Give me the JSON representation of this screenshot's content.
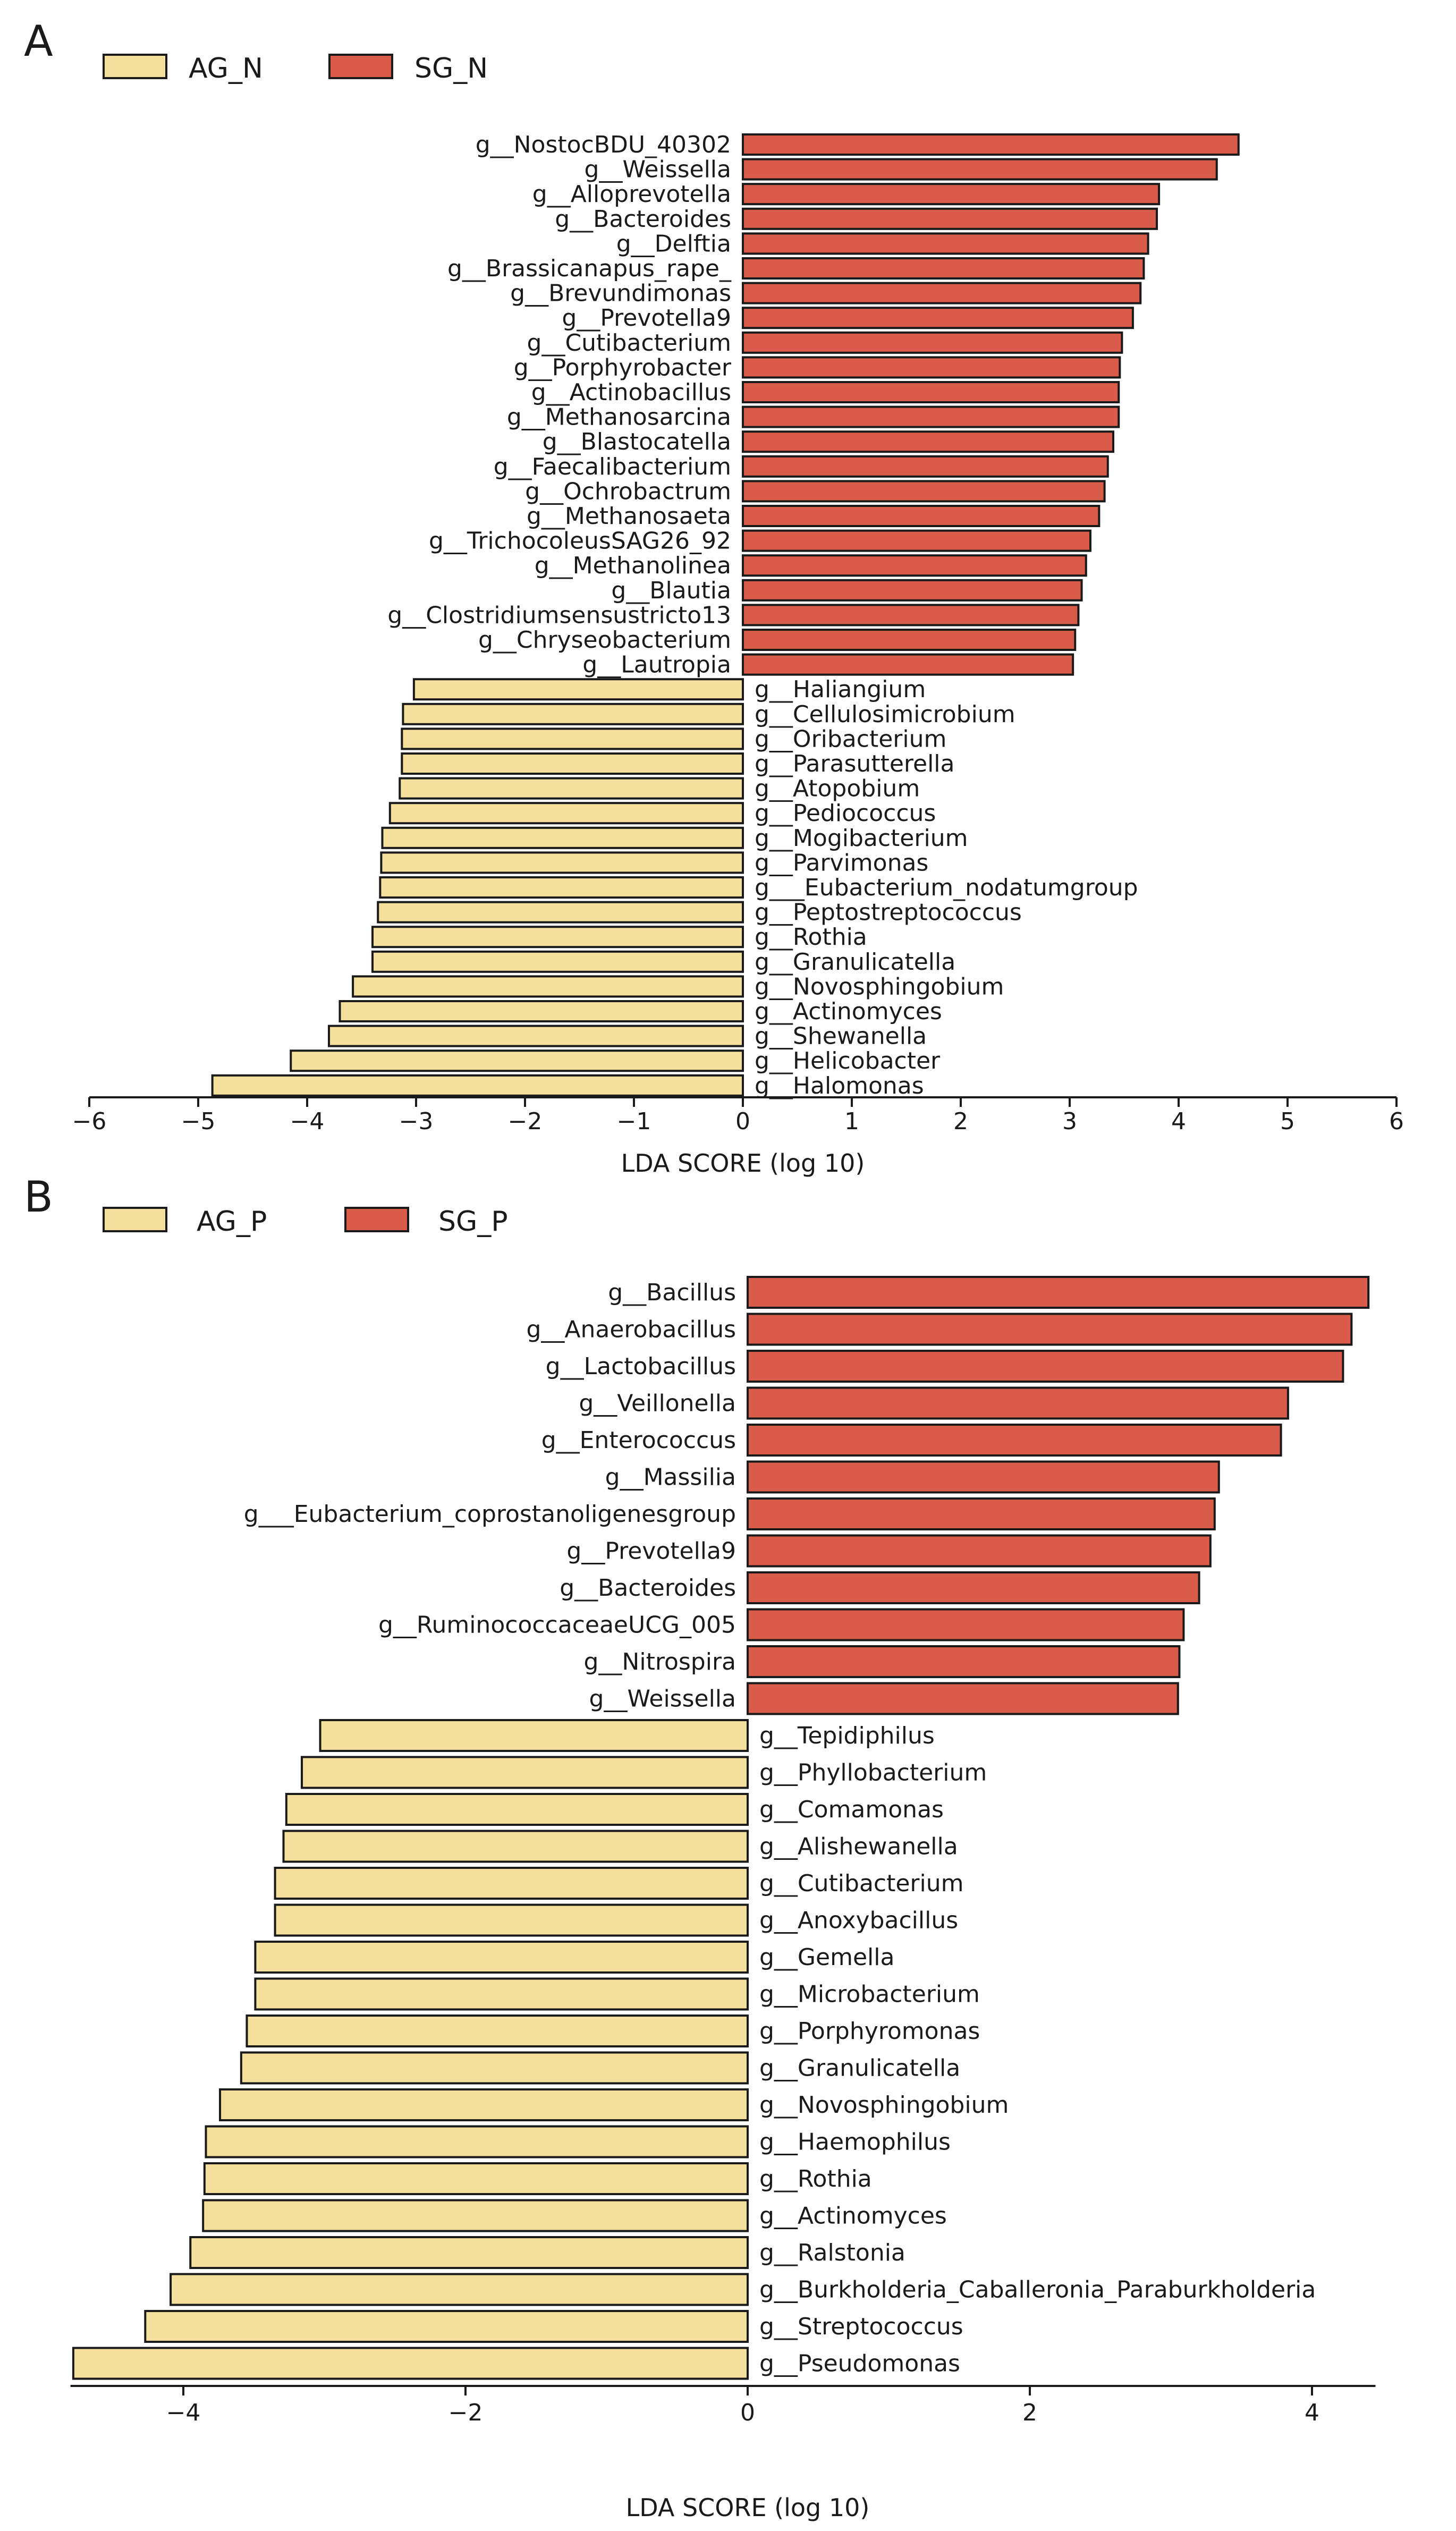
{
  "colors": {
    "positive": "#d95b4a",
    "negative": "#f4df9d",
    "edge": "#1a1a1a"
  },
  "chart_data": [
    {
      "type": "bar",
      "orientation": "horizontal",
      "panel_label": "A",
      "legend": [
        "AG_N",
        "SG_N"
      ],
      "xlabel": "LDA SCORE (log 10)",
      "xlim": [
        -6,
        6
      ],
      "xticks": [
        -6,
        -5,
        -4,
        -3,
        -2,
        -1,
        0,
        1,
        2,
        3,
        4,
        5,
        6
      ],
      "categories": [
        "g__NostocBDU_40302",
        "g__Weissella",
        "g__Alloprevotella",
        "g__Bacteroides",
        "g__Delftia",
        "g__Brassicanapus_rape_",
        "g__Brevundimonas",
        "g__Prevotella9",
        "g__Cutibacterium",
        "g__Porphyrobacter",
        "g__Actinobacillus",
        "g__Methanosarcina",
        "g__Blastocatella",
        "g__Faecalibacterium",
        "g__Ochrobactrum",
        "g__Methanosaeta",
        "g__TrichocoleusSAG26_92",
        "g__Methanolinea",
        "g__Blautia",
        "g__Clostridiumsensustricto13",
        "g__Chryseobacterium",
        "g__Lautropia",
        "g__Haliangium",
        "g__Cellulosimicrobium",
        "g__Oribacterium",
        "g__Parasutterella",
        "g__Atopobium",
        "g__Pediococcus",
        "g__Mogibacterium",
        "g__Parvimonas",
        "g___Eubacterium_nodatumgroup",
        "g__Peptostreptococcus",
        "g__Rothia",
        "g__Granulicatella",
        "g__Novosphingobium",
        "g__Actinomyces",
        "g__Shewanella",
        "g__Helicobacter",
        "g__Halomonas"
      ],
      "values": [
        4.55,
        4.35,
        3.82,
        3.8,
        3.72,
        3.68,
        3.65,
        3.58,
        3.48,
        3.46,
        3.45,
        3.45,
        3.4,
        3.35,
        3.32,
        3.27,
        3.19,
        3.15,
        3.11,
        3.08,
        3.05,
        3.03,
        -3.02,
        -3.12,
        -3.13,
        -3.13,
        -3.15,
        -3.24,
        -3.31,
        -3.32,
        -3.33,
        -3.35,
        -3.4,
        -3.4,
        -3.58,
        -3.7,
        -3.8,
        -4.15,
        -4.87
      ]
    },
    {
      "type": "bar",
      "orientation": "horizontal",
      "panel_label": "B",
      "legend": [
        "AG_P",
        "SG_P"
      ],
      "xlabel": "LDA SCORE (log 10)",
      "xlim": [
        -4.8,
        4.45
      ],
      "xticks": [
        -4,
        -2,
        0,
        2,
        4
      ],
      "categories": [
        "g__Bacillus",
        "g__Anaerobacillus",
        "g__Lactobacillus",
        "g__Veillonella",
        "g__Enterococcus",
        "g__Massilia",
        "g___Eubacterium_coprostanoligenesgroup",
        "g__Prevotella9",
        "g__Bacteroides",
        "g__RuminococcaceaeUCG_005",
        "g__Nitrospira",
        "g__Weissella",
        "g__Tepidiphilus",
        "g__Phyllobacterium",
        "g__Comamonas",
        "g__Alishewanella",
        "g__Cutibacterium",
        "g__Anoxybacillus",
        "g__Gemella",
        "g__Microbacterium",
        "g__Porphyromonas",
        "g__Granulicatella",
        "g__Novosphingobium",
        "g__Haemophilus",
        "g__Rothia",
        "g__Actinomyces",
        "g__Ralstonia",
        "g__Burkholderia_Caballeronia_Paraburkholderia",
        "g__Streptococcus",
        "g__Pseudomonas"
      ],
      "values": [
        4.4,
        4.28,
        4.22,
        3.83,
        3.78,
        3.34,
        3.31,
        3.28,
        3.2,
        3.09,
        3.06,
        3.05,
        -3.03,
        -3.16,
        -3.27,
        -3.29,
        -3.35,
        -3.35,
        -3.49,
        -3.49,
        -3.55,
        -3.59,
        -3.74,
        -3.84,
        -3.85,
        -3.86,
        -3.95,
        -4.09,
        -4.27,
        -4.78
      ]
    }
  ]
}
